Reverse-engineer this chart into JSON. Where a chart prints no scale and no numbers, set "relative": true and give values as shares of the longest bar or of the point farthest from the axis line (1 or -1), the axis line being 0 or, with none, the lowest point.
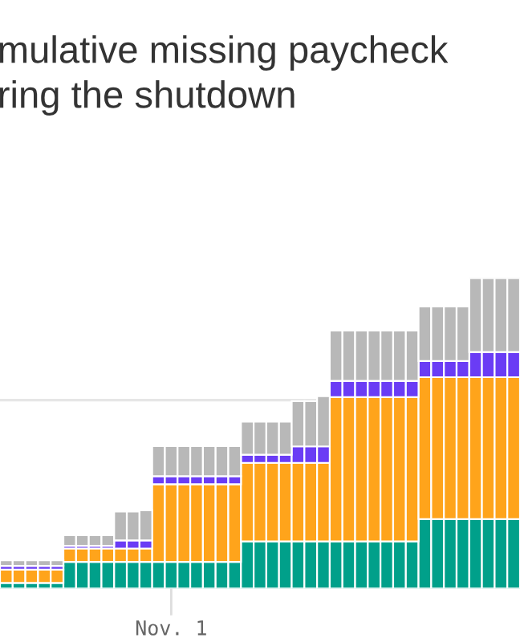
{
  "chart_data": {
    "type": "bar",
    "title": "mulative missing paycheck\nring the shutdown",
    "stacked": true,
    "relative": true,
    "categories": [
      null,
      null,
      null,
      null,
      null,
      null,
      null,
      null,
      null,
      null,
      null,
      null,
      null,
      "Nov. 1",
      null,
      null,
      null,
      null,
      null,
      null,
      null,
      null,
      null,
      null,
      null,
      null,
      null,
      null,
      null,
      null,
      null,
      null,
      null,
      null,
      null,
      null,
      null,
      null,
      null,
      null,
      null
    ],
    "series": [
      {
        "color": "#00a08a",
        "values": [
          0.018,
          0.018,
          0.018,
          0.018,
          0.018,
          0.086,
          0.086,
          0.086,
          0.086,
          0.086,
          0.086,
          0.086,
          0.086,
          0.086,
          0.086,
          0.086,
          0.086,
          0.086,
          0.086,
          0.152,
          0.152,
          0.152,
          0.152,
          0.152,
          0.152,
          0.152,
          0.152,
          0.152,
          0.152,
          0.152,
          0.152,
          0.152,
          0.152,
          0.224,
          0.224,
          0.224,
          0.224,
          0.224,
          0.224,
          0.224,
          0.224
        ]
      },
      {
        "color": "#ffa41b",
        "values": [
          0.043,
          0.043,
          0.043,
          0.043,
          0.043,
          0.043,
          0.043,
          0.043,
          0.043,
          0.043,
          0.043,
          0.043,
          0.25,
          0.25,
          0.25,
          0.25,
          0.25,
          0.25,
          0.25,
          0.253,
          0.253,
          0.253,
          0.253,
          0.253,
          0.253,
          0.253,
          0.465,
          0.465,
          0.465,
          0.465,
          0.465,
          0.465,
          0.465,
          0.457,
          0.457,
          0.457,
          0.457,
          0.457,
          0.457,
          0.457,
          0.457
        ]
      },
      {
        "color": "#6a3cf5",
        "values": [
          0.012,
          0.012,
          0.012,
          0.012,
          0.012,
          0.009,
          0.009,
          0.009,
          0.009,
          0.026,
          0.026,
          0.026,
          0.026,
          0.026,
          0.026,
          0.026,
          0.026,
          0.026,
          0.026,
          0.026,
          0.026,
          0.026,
          0.026,
          0.053,
          0.053,
          0.053,
          0.052,
          0.052,
          0.052,
          0.052,
          0.052,
          0.052,
          0.052,
          0.052,
          0.052,
          0.052,
          0.052,
          0.081,
          0.081,
          0.081,
          0.081
        ]
      },
      {
        "color": "#b8b8b8",
        "values": [
          0.018,
          0.018,
          0.018,
          0.018,
          0.018,
          0.034,
          0.034,
          0.034,
          0.034,
          0.093,
          0.093,
          0.097,
          0.097,
          0.097,
          0.097,
          0.097,
          0.097,
          0.097,
          0.097,
          0.107,
          0.107,
          0.107,
          0.107,
          0.146,
          0.146,
          0.162,
          0.162,
          0.162,
          0.162,
          0.162,
          0.162,
          0.162,
          0.162,
          0.176,
          0.176,
          0.176,
          0.176,
          0.238,
          0.238,
          0.238,
          0.238
        ]
      }
    ],
    "ref_lines": [
      {
        "axis": "y",
        "value": 0.607,
        "color": "#e6e6e6"
      }
    ]
  }
}
